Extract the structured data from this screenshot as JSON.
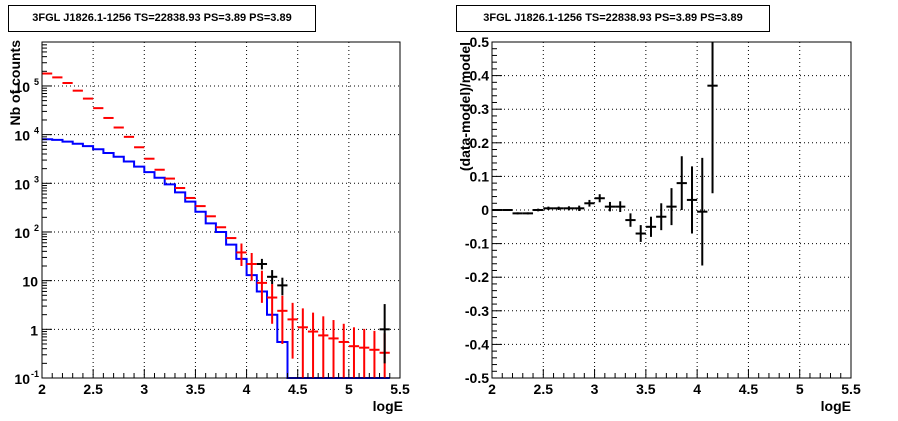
{
  "chart_data": [
    {
      "type": "line",
      "title": "3FGL J1826.1-1256 TS=22838.93 PS=3.89 PS=3.89",
      "xlabel": "logE",
      "ylabel": "Nb of counts",
      "xlim": [
        2,
        5.5
      ],
      "ylim": [
        0.1,
        800000
      ],
      "yscale": "log",
      "grid": true,
      "x_ticks": [
        "2",
        "2.5",
        "3",
        "3.5",
        "4",
        "4.5",
        "5",
        "5.5"
      ],
      "y_ticks": [
        "10^-1",
        "1",
        "10",
        "10^2",
        "10^3",
        "10^4",
        "10^5"
      ],
      "bin_edges": [
        2.0,
        2.1,
        2.2,
        2.3,
        2.4,
        2.5,
        2.6,
        2.7,
        2.8,
        2.9,
        3.0,
        3.1,
        3.2,
        3.3,
        3.4,
        3.5,
        3.6,
        3.7,
        3.8,
        3.9,
        4.0,
        4.1,
        4.2,
        4.3,
        4.4,
        4.5,
        4.6,
        4.7,
        4.8,
        4.9,
        5.0,
        5.1,
        5.2,
        5.3,
        5.4,
        5.5
      ],
      "series": [
        {
          "name": "",
          "role": "model_total",
          "color": "#ff0000",
          "x": [
            2.05,
            2.15,
            2.25,
            2.35,
            2.45,
            2.55,
            2.65,
            2.75,
            2.85,
            2.95,
            3.05,
            3.15,
            3.25,
            3.35,
            3.45,
            3.55,
            3.65,
            3.75,
            3.85,
            3.95,
            4.05,
            4.15,
            4.25,
            4.35,
            4.45,
            4.55,
            4.65,
            4.75,
            4.85,
            4.95,
            5.05,
            5.15,
            5.25,
            5.35
          ],
          "y": [
            180000,
            150000,
            115000,
            80000,
            55000,
            35000,
            22000,
            14000,
            9000,
            5500,
            3200,
            1900,
            1250,
            800,
            500,
            340,
            210,
            125,
            75,
            38,
            22,
            9,
            4.5,
            2.4,
            1.6,
            1.1,
            0.9,
            0.75,
            0.65,
            0.55,
            0.45,
            0.42,
            0.38,
            0.33
          ],
          "yerr_low": [
            0,
            0,
            0,
            0,
            0,
            0,
            0,
            0,
            0,
            0,
            0,
            0,
            0,
            0,
            0,
            0,
            0,
            0,
            0,
            18,
            12,
            5.5,
            3.2,
            1.9,
            1.35,
            1.0,
            0.82,
            0.68,
            0.6,
            0.5,
            0.42,
            0.39,
            0.35,
            0.3
          ],
          "yerr_high": [
            0,
            0,
            0,
            0,
            0,
            0,
            0,
            0,
            0,
            0,
            0,
            0,
            0,
            0,
            0,
            0,
            0,
            0,
            0,
            20,
            15,
            7,
            4,
            2.5,
            1.9,
            1.6,
            1.3,
            1.1,
            0.9,
            0.75,
            0.65,
            0.6,
            0.55,
            0.5
          ]
        },
        {
          "name": "",
          "role": "model_component",
          "color": "#0000ff",
          "x": [
            2.05,
            2.15,
            2.25,
            2.35,
            2.45,
            2.55,
            2.65,
            2.75,
            2.85,
            2.95,
            3.05,
            3.15,
            3.25,
            3.35,
            3.45,
            3.55,
            3.65,
            3.75,
            3.85,
            3.95,
            4.05,
            4.15,
            4.25,
            4.35,
            4.45,
            4.55,
            4.65,
            4.75,
            4.85,
            4.95,
            5.05,
            5.15,
            5.25,
            5.35
          ],
          "y": [
            8000,
            7800,
            7200,
            6500,
            5800,
            5000,
            4200,
            3500,
            2800,
            2200,
            1700,
            1300,
            950,
            650,
            420,
            260,
            150,
            100,
            55,
            28,
            13,
            6,
            2,
            0.55,
            0.1,
            0.1,
            0.1,
            0.1,
            0.1,
            0.1,
            0.1,
            0.1,
            0.1,
            0.1
          ]
        },
        {
          "name": "",
          "role": "data",
          "color": "#000000",
          "x": [
            4.15,
            4.25,
            4.35,
            5.35
          ],
          "y": [
            22,
            12,
            8,
            1
          ],
          "yerr_low": [
            5,
            3.5,
            3,
            0.8
          ],
          "yerr_high": [
            6,
            4.5,
            3.5,
            2.3
          ]
        }
      ]
    },
    {
      "type": "scatter",
      "title": "3FGL J1826.1-1256 TS=22838.93 PS=3.89 PS=3.89",
      "xlabel": "logE",
      "ylabel": "(data-model)/model",
      "xlim": [
        2,
        5.5
      ],
      "ylim": [
        -0.5,
        0.5
      ],
      "grid": true,
      "x_ticks": [
        "2",
        "2.5",
        "3",
        "3.5",
        "4",
        "4.5",
        "5",
        "5.5"
      ],
      "y_ticks": [
        "-0.5",
        "-0.4",
        "-0.3",
        "-0.2",
        "-0.1",
        "0",
        "0.1",
        "0.2",
        "0.3",
        "0.4",
        "0.5"
      ],
      "series": [
        {
          "name": "",
          "color": "#000000",
          "x": [
            2.05,
            2.15,
            2.25,
            2.35,
            2.45,
            2.55,
            2.65,
            2.75,
            2.85,
            2.95,
            3.05,
            3.15,
            3.25,
            3.35,
            3.45,
            3.55,
            3.65,
            3.75,
            3.85,
            3.95,
            4.05,
            4.15
          ],
          "y": [
            0.0,
            0.0,
            -0.01,
            -0.01,
            0.0,
            0.005,
            0.005,
            0.005,
            0.005,
            0.02,
            0.035,
            0.01,
            0.01,
            -0.03,
            -0.07,
            -0.05,
            -0.02,
            0.01,
            0.08,
            0.03,
            -0.005,
            0.37
          ],
          "yerr": [
            0.002,
            0.002,
            0.003,
            0.003,
            0.004,
            0.005,
            0.005,
            0.006,
            0.008,
            0.01,
            0.012,
            0.014,
            0.016,
            0.02,
            0.025,
            0.03,
            0.04,
            0.055,
            0.08,
            0.1,
            0.16,
            0.32
          ]
        }
      ]
    }
  ]
}
